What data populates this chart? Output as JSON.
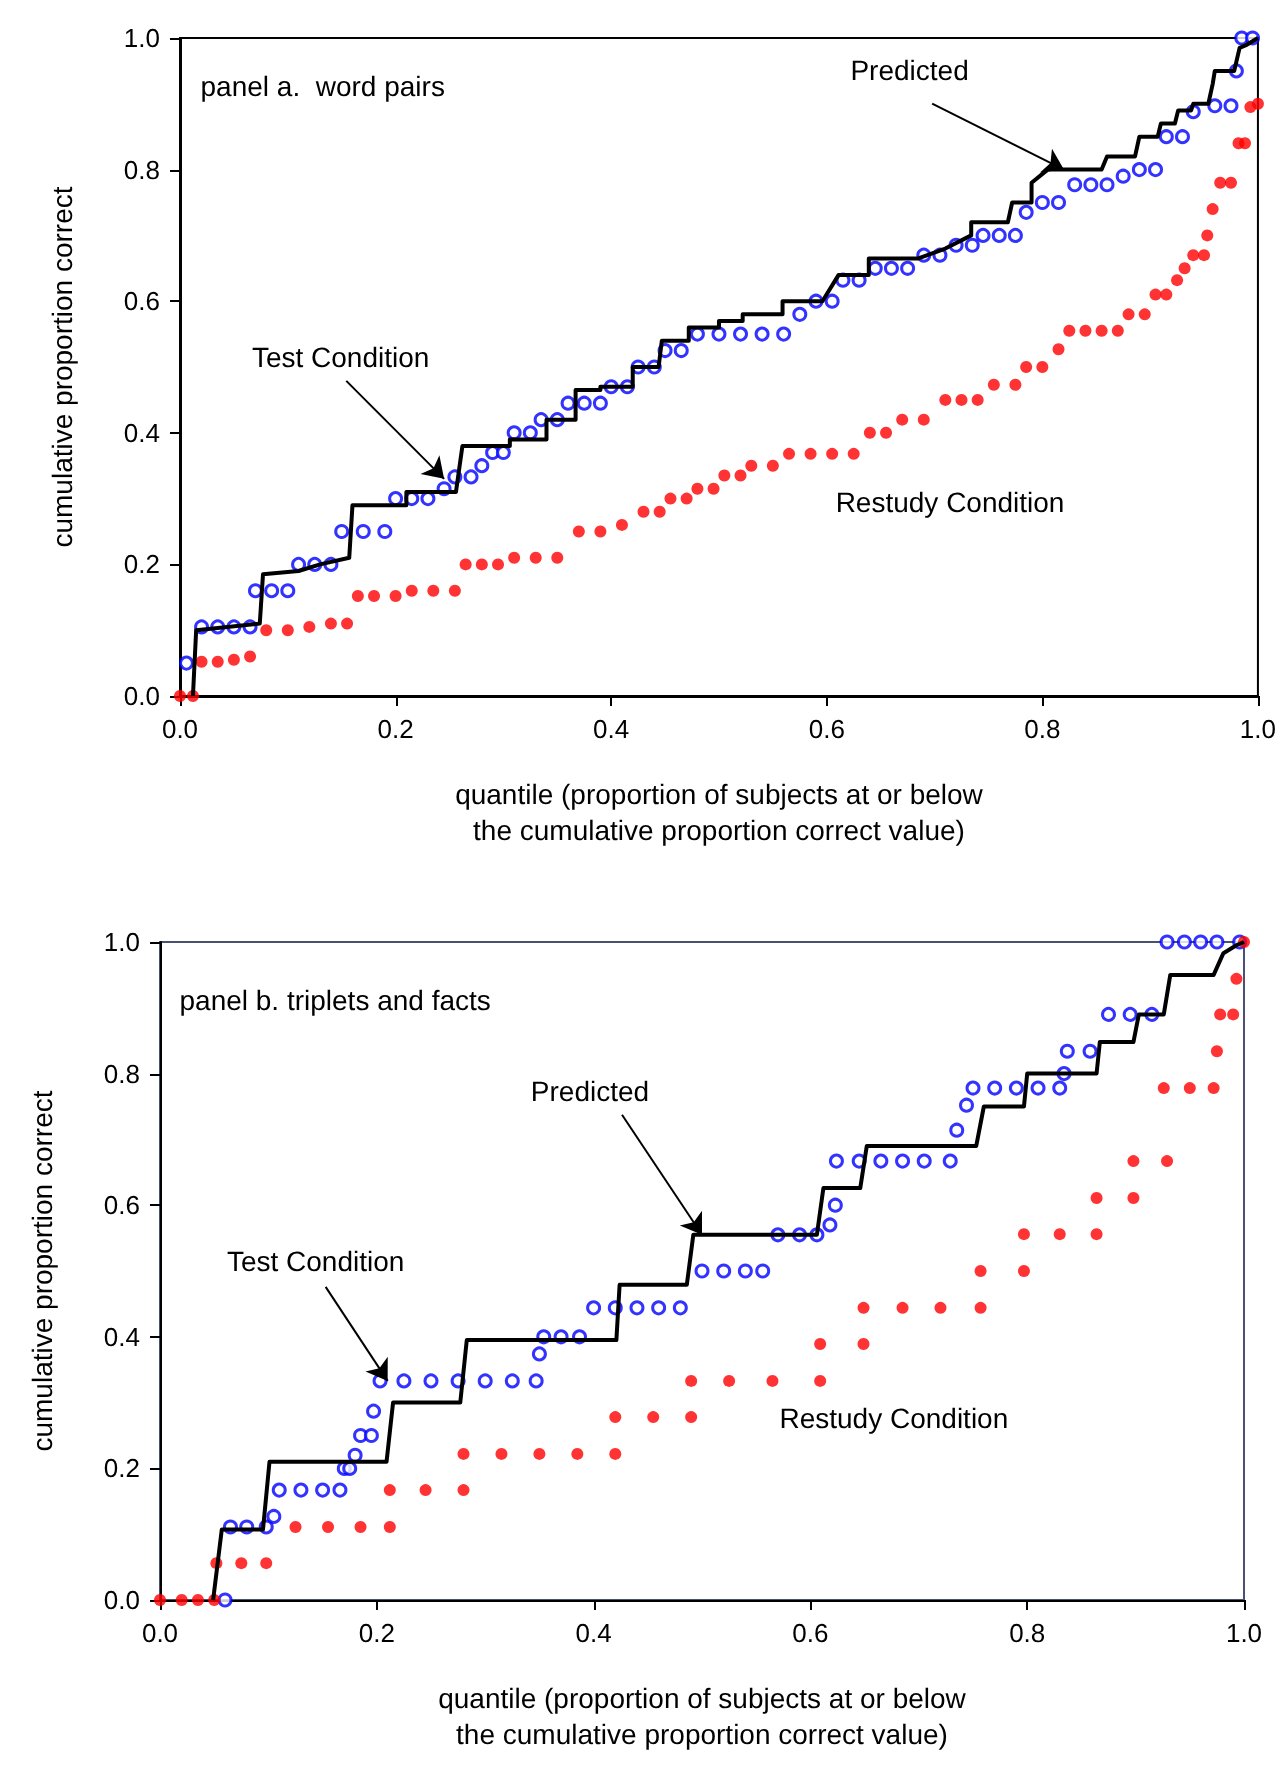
{
  "chart_data": [
    {
      "type": "scatter",
      "xlabel": "quantile (proportion of subjects at or below\nthe cumulative proportion correct value)",
      "ylabel": "cumulative proportion correct",
      "xlim": [
        0,
        1
      ],
      "ylim": [
        0,
        1
      ],
      "xticks": [
        {
          "value": 0,
          "label": "0.0"
        },
        {
          "value": 0.2,
          "label": "0.2"
        },
        {
          "value": 0.4,
          "label": "0.4"
        },
        {
          "value": 0.6,
          "label": "0.6"
        },
        {
          "value": 0.8,
          "label": "0.8"
        },
        {
          "value": 1,
          "label": "1.0"
        }
      ],
      "yticks": [
        {
          "value": 0,
          "label": "0.0"
        },
        {
          "value": 0.2,
          "label": "0.2"
        },
        {
          "value": 0.4,
          "label": "0.4"
        },
        {
          "value": 0.6,
          "label": "0.6"
        },
        {
          "value": 0.8,
          "label": "0.8"
        },
        {
          "value": 1,
          "label": "1.0"
        }
      ],
      "grid": false,
      "marker": "circle",
      "annotations": [
        "panel a.  word pairs",
        {
          "text": "Test Condition",
          "x": 0.245,
          "y": 0.33
        },
        {
          "text": "Predicted",
          "x": 0.82,
          "y": 0.8
        },
        "Restudy Condition"
      ],
      "series": [
        {
          "type": "line",
          "color": "#000000",
          "marker": "none",
          "line_style": "solid",
          "x": [
            0.012,
            0.015,
            0.074,
            0.077,
            0.11,
            0.13,
            0.157,
            0.16,
            0.21,
            0.21,
            0.256,
            0.262,
            0.306,
            0.306,
            0.34,
            0.34,
            0.367,
            0.367,
            0.39,
            0.39,
            0.42,
            0.42,
            0.444,
            0.447,
            0.472,
            0.472,
            0.5,
            0.5,
            0.522,
            0.522,
            0.559,
            0.559,
            0.596,
            0.611,
            0.639,
            0.639,
            0.685,
            0.71,
            0.734,
            0.734,
            0.768,
            0.772,
            0.79,
            0.79,
            0.805,
            0.855,
            0.86,
            0.886,
            0.89,
            0.907,
            0.91,
            0.923,
            0.926,
            0.938,
            0.94,
            0.954,
            0.958,
            0.96,
            0.978,
            0.983,
            0.99,
            1.0
          ],
          "values": [
            0,
            0.1,
            0.11,
            0.185,
            0.19,
            0.2,
            0.21,
            0.29,
            0.29,
            0.31,
            0.31,
            0.38,
            0.38,
            0.39,
            0.39,
            0.42,
            0.42,
            0.465,
            0.465,
            0.47,
            0.47,
            0.5,
            0.5,
            0.54,
            0.54,
            0.56,
            0.56,
            0.57,
            0.57,
            0.58,
            0.58,
            0.6,
            0.6,
            0.64,
            0.64,
            0.665,
            0.665,
            0.68,
            0.7,
            0.72,
            0.72,
            0.75,
            0.75,
            0.78,
            0.8,
            0.8,
            0.82,
            0.82,
            0.85,
            0.85,
            0.87,
            0.87,
            0.89,
            0.89,
            0.9,
            0.9,
            0.93,
            0.95,
            0.95,
            0.985,
            0.99,
            1.0
          ]
        },
        {
          "color": "#0000ff",
          "x": [
            0.006,
            0.02,
            0.035,
            0.05,
            0.065,
            0.07,
            0.085,
            0.1,
            0.11,
            0.125,
            0.14,
            0.15,
            0.17,
            0.19,
            0.2,
            0.215,
            0.23,
            0.245,
            0.255,
            0.27,
            0.28,
            0.29,
            0.3,
            0.31,
            0.325,
            0.335,
            0.35,
            0.36,
            0.375,
            0.39,
            0.4,
            0.415,
            0.425,
            0.44,
            0.45,
            0.465,
            0.48,
            0.5,
            0.52,
            0.54,
            0.56,
            0.575,
            0.59,
            0.605,
            0.615,
            0.63,
            0.645,
            0.66,
            0.675,
            0.69,
            0.705,
            0.72,
            0.735,
            0.745,
            0.76,
            0.775,
            0.785,
            0.8,
            0.815,
            0.83,
            0.845,
            0.86,
            0.875,
            0.89,
            0.905,
            0.915,
            0.93,
            0.94,
            0.96,
            0.975,
            0.98,
            0.985,
            0.995
          ],
          "values": [
            0.05,
            0.105,
            0.105,
            0.105,
            0.105,
            0.16,
            0.16,
            0.16,
            0.2,
            0.2,
            0.2,
            0.25,
            0.25,
            0.25,
            0.3,
            0.3,
            0.3,
            0.315,
            0.333,
            0.333,
            0.35,
            0.37,
            0.37,
            0.4,
            0.4,
            0.42,
            0.42,
            0.445,
            0.445,
            0.445,
            0.47,
            0.47,
            0.5,
            0.5,
            0.525,
            0.525,
            0.55,
            0.55,
            0.55,
            0.55,
            0.55,
            0.58,
            0.6,
            0.6,
            0.632,
            0.632,
            0.65,
            0.65,
            0.65,
            0.67,
            0.67,
            0.685,
            0.685,
            0.7,
            0.7,
            0.7,
            0.735,
            0.75,
            0.75,
            0.777,
            0.777,
            0.777,
            0.79,
            0.8,
            0.8,
            0.85,
            0.85,
            0.888,
            0.897,
            0.897,
            0.95,
            1.0,
            1.0
          ]
        },
        {
          "color": "#ff0000",
          "x": [
            0,
            0.012,
            0.02,
            0.035,
            0.05,
            0.065,
            0.08,
            0.1,
            0.12,
            0.14,
            0.155,
            0.165,
            0.18,
            0.2,
            0.215,
            0.235,
            0.255,
            0.265,
            0.28,
            0.295,
            0.31,
            0.33,
            0.35,
            0.37,
            0.39,
            0.41,
            0.43,
            0.445,
            0.455,
            0.47,
            0.48,
            0.495,
            0.505,
            0.52,
            0.53,
            0.55,
            0.565,
            0.585,
            0.605,
            0.625,
            0.64,
            0.655,
            0.67,
            0.69,
            0.71,
            0.725,
            0.74,
            0.755,
            0.775,
            0.785,
            0.8,
            0.815,
            0.825,
            0.84,
            0.855,
            0.87,
            0.88,
            0.895,
            0.905,
            0.915,
            0.925,
            0.932,
            0.94,
            0.95,
            0.953,
            0.958,
            0.965,
            0.975,
            0.982,
            0.988,
            0.993,
            1.0
          ],
          "values": [
            0,
            0,
            0.052,
            0.052,
            0.055,
            0.06,
            0.1,
            0.1,
            0.105,
            0.11,
            0.11,
            0.152,
            0.152,
            0.152,
            0.16,
            0.16,
            0.16,
            0.2,
            0.2,
            0.2,
            0.21,
            0.21,
            0.21,
            0.25,
            0.25,
            0.26,
            0.28,
            0.28,
            0.3,
            0.3,
            0.315,
            0.315,
            0.335,
            0.335,
            0.35,
            0.35,
            0.368,
            0.368,
            0.368,
            0.368,
            0.4,
            0.4,
            0.42,
            0.42,
            0.45,
            0.45,
            0.45,
            0.473,
            0.473,
            0.5,
            0.5,
            0.527,
            0.555,
            0.555,
            0.555,
            0.555,
            0.58,
            0.58,
            0.61,
            0.61,
            0.632,
            0.65,
            0.67,
            0.67,
            0.7,
            0.74,
            0.78,
            0.78,
            0.84,
            0.84,
            0.895,
            0.9
          ]
        }
      ]
    },
    {
      "type": "scatter",
      "xlabel": "quantile (proportion of subjects at or below\nthe cumulative proportion correct value)",
      "ylabel": "cumulative proportion correct",
      "xlim": [
        0,
        1
      ],
      "ylim": [
        0,
        1
      ],
      "xticks": [
        {
          "value": 0,
          "label": "0.0"
        },
        {
          "value": 0.2,
          "label": "0.2"
        },
        {
          "value": 0.4,
          "label": "0.4"
        },
        {
          "value": 0.6,
          "label": "0.6"
        },
        {
          "value": 0.8,
          "label": "0.8"
        },
        {
          "value": 1,
          "label": "1.0"
        }
      ],
      "yticks": [
        {
          "value": 0,
          "label": "0.0"
        },
        {
          "value": 0.2,
          "label": "0.2"
        },
        {
          "value": 0.4,
          "label": "0.4"
        },
        {
          "value": 0.6,
          "label": "0.6"
        },
        {
          "value": 0.8,
          "label": "0.8"
        },
        {
          "value": 1,
          "label": "1.0"
        }
      ],
      "grid": false,
      "marker": "circle",
      "annotations": [
        "panel b. triplets and facts",
        {
          "text": "Test Condition",
          "x": 0.21,
          "y": 0.333
        },
        {
          "text": "Predicted",
          "x": 0.5,
          "y": 0.555
        },
        "Restudy Condition"
      ],
      "series": [
        {
          "type": "line",
          "color": "#000000",
          "marker": "none",
          "line_style": "solid",
          "x": [
            0.049,
            0.057,
            0.095,
            0.101,
            0.209,
            0.215,
            0.277,
            0.283,
            0.421,
            0.424,
            0.486,
            0.492,
            0.606,
            0.612,
            0.646,
            0.652,
            0.753,
            0.76,
            0.797,
            0.8,
            0.864,
            0.867,
            0.898,
            0.903,
            0.926,
            0.932,
            0.972,
            0.981,
            0.993,
            1.0
          ],
          "values": [
            0,
            0.107,
            0.107,
            0.21,
            0.21,
            0.3,
            0.3,
            0.395,
            0.395,
            0.479,
            0.479,
            0.555,
            0.555,
            0.626,
            0.626,
            0.69,
            0.69,
            0.75,
            0.75,
            0.8,
            0.8,
            0.848,
            0.848,
            0.89,
            0.89,
            0.95,
            0.95,
            0.983,
            0.995,
            1.0
          ]
        },
        {
          "color": "#0000ff",
          "x": [
            0.06,
            0.065,
            0.08,
            0.098,
            0.105,
            0.11,
            0.13,
            0.15,
            0.166,
            0.17,
            0.175,
            0.18,
            0.185,
            0.195,
            0.197,
            0.203,
            0.225,
            0.25,
            0.275,
            0.3,
            0.325,
            0.347,
            0.35,
            0.354,
            0.37,
            0.387,
            0.4,
            0.42,
            0.44,
            0.46,
            0.48,
            0.5,
            0.52,
            0.54,
            0.556,
            0.57,
            0.59,
            0.606,
            0.618,
            0.623,
            0.624,
            0.645,
            0.665,
            0.685,
            0.705,
            0.729,
            0.735,
            0.744,
            0.75,
            0.77,
            0.79,
            0.81,
            0.83,
            0.834,
            0.837,
            0.858,
            0.875,
            0.895,
            0.915,
            0.929,
            0.945,
            0.96,
            0.975,
            0.996
          ],
          "values": [
            0,
            0.111,
            0.111,
            0.111,
            0.127,
            0.167,
            0.167,
            0.167,
            0.167,
            0.2,
            0.2,
            0.22,
            0.25,
            0.25,
            0.287,
            0.333,
            0.333,
            0.333,
            0.333,
            0.333,
            0.333,
            0.333,
            0.374,
            0.4,
            0.4,
            0.4,
            0.444,
            0.444,
            0.444,
            0.444,
            0.444,
            0.5,
            0.5,
            0.5,
            0.5,
            0.555,
            0.555,
            0.555,
            0.57,
            0.6,
            0.667,
            0.667,
            0.667,
            0.667,
            0.667,
            0.667,
            0.714,
            0.752,
            0.778,
            0.778,
            0.778,
            0.778,
            0.778,
            0.8,
            0.834,
            0.834,
            0.89,
            0.89,
            0.89,
            1.0,
            1.0,
            1.0,
            1.0,
            1.0
          ]
        },
        {
          "color": "#ff0000",
          "x": [
            0,
            0.02,
            0.035,
            0.05,
            0.052,
            0.075,
            0.098,
            0.125,
            0.155,
            0.185,
            0.212,
            0.212,
            0.245,
            0.28,
            0.28,
            0.315,
            0.35,
            0.385,
            0.42,
            0.42,
            0.455,
            0.49,
            0.49,
            0.525,
            0.565,
            0.609,
            0.609,
            0.649,
            0.649,
            0.685,
            0.72,
            0.757,
            0.757,
            0.797,
            0.797,
            0.83,
            0.864,
            0.864,
            0.898,
            0.898,
            0.929,
            0.926,
            0.95,
            0.972,
            0.975,
            0.978,
            0.99,
            0.993,
            1.0
          ],
          "values": [
            0,
            0,
            0,
            0,
            0.056,
            0.056,
            0.056,
            0.111,
            0.111,
            0.111,
            0.111,
            0.167,
            0.167,
            0.167,
            0.222,
            0.222,
            0.222,
            0.222,
            0.222,
            0.278,
            0.278,
            0.278,
            0.333,
            0.333,
            0.333,
            0.333,
            0.389,
            0.389,
            0.444,
            0.444,
            0.444,
            0.444,
            0.5,
            0.5,
            0.556,
            0.556,
            0.556,
            0.611,
            0.611,
            0.667,
            0.667,
            0.778,
            0.778,
            0.778,
            0.834,
            0.89,
            0.89,
            0.944,
            1.0
          ]
        }
      ]
    }
  ]
}
